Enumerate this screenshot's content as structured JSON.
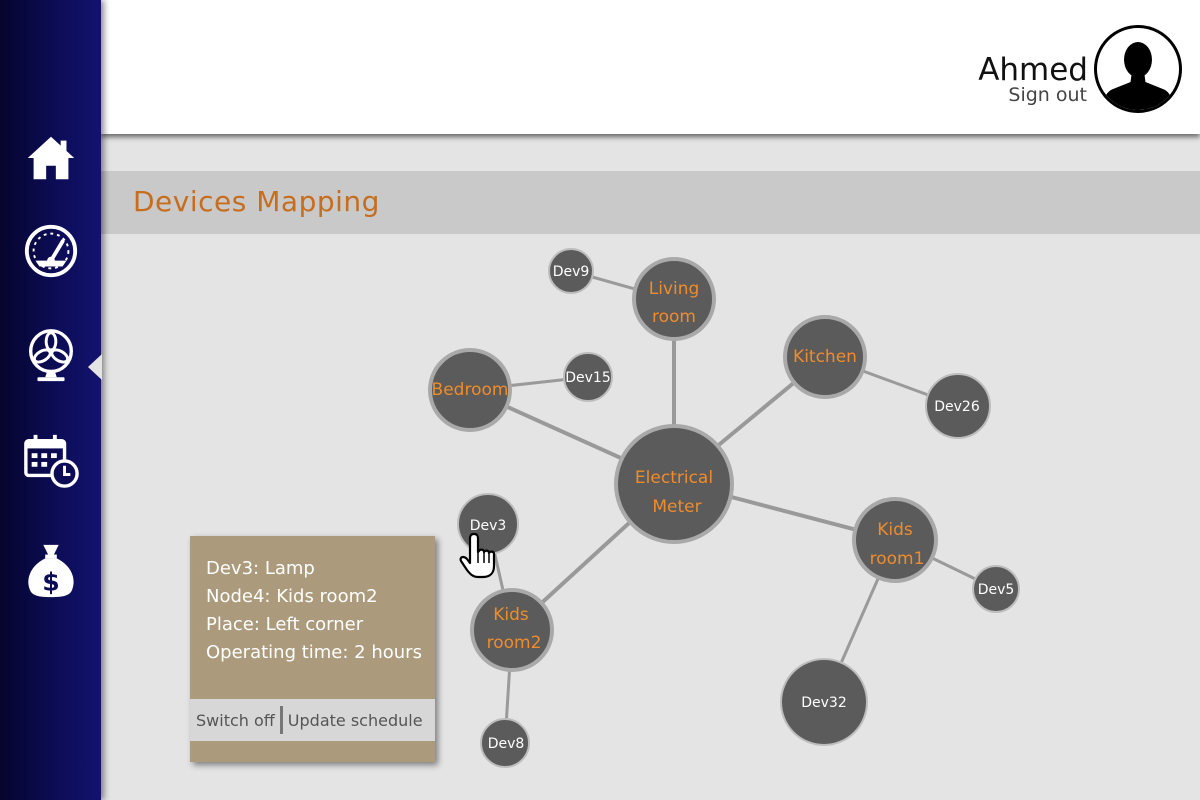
{
  "user": {
    "name": "Ahmed",
    "sign_out_label": "Sign out"
  },
  "page": {
    "title": "Devices Mapping"
  },
  "sidebar": {
    "items": [
      {
        "icon": "home-icon",
        "active": false
      },
      {
        "icon": "gauge-icon",
        "active": false
      },
      {
        "icon": "fan-icon",
        "active": true
      },
      {
        "icon": "calendar-clock-icon",
        "active": false
      },
      {
        "icon": "money-bag-icon",
        "active": false
      }
    ]
  },
  "map": {
    "center": {
      "line1": "Electrical",
      "line2": "Meter"
    },
    "rooms": {
      "living_room": {
        "line1": "Living",
        "line2": "room"
      },
      "kitchen": {
        "line1": "Kitchen"
      },
      "bedroom": {
        "line1": "Bedroom"
      },
      "kids_room1": {
        "line1": "Kids",
        "line2": "room1"
      },
      "kids_room2": {
        "line1": "Kids",
        "line2": "room2"
      }
    },
    "devices": {
      "dev9": "Dev9",
      "dev15": "Dev15",
      "dev26": "Dev26",
      "dev3": "Dev3",
      "dev5": "Dev5",
      "dev32": "Dev32",
      "dev8": "Dev8"
    }
  },
  "tooltip": {
    "device": "Dev3: Lamp",
    "node": "Node4: Kids room2",
    "place": "Place: Left corner",
    "operating_time": "Operating time: 2 hours",
    "switch_off_label": "Switch off",
    "update_schedule_label": "Update schedule"
  },
  "colors": {
    "room_label": "#f08c2a",
    "title": "#c66d1e",
    "sidebar": "#0c0c56",
    "tooltip_bg": "#ab9b7c"
  }
}
